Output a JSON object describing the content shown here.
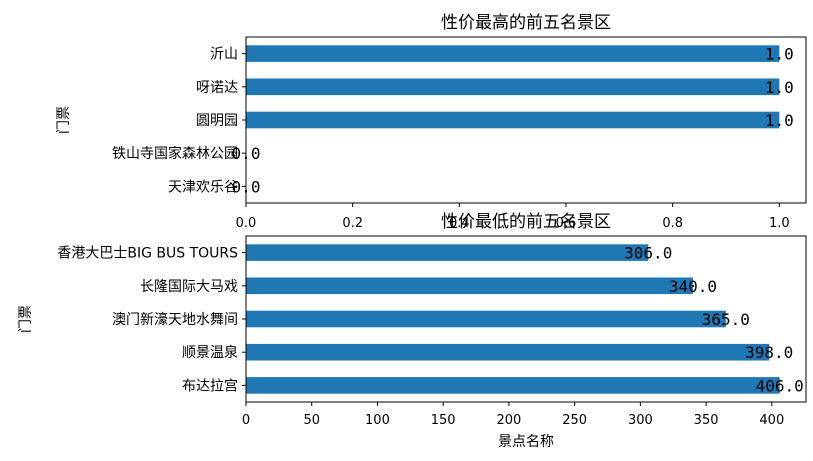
{
  "chart_data": [
    {
      "type": "bar",
      "orientation": "horizontal",
      "title": "性价最高的前五名景区",
      "ylabel": "门票",
      "xlabel": "",
      "categories": [
        "沂山",
        "呀诺达",
        "圆明园",
        "铁山寺国家森林公园",
        "天津欢乐谷"
      ],
      "values": [
        1.0,
        1.0,
        1.0,
        0.0,
        0.0
      ],
      "data_labels": [
        "1.0",
        "1.0",
        "1.0",
        "0.0",
        "0.0"
      ],
      "xlim": [
        0,
        1.05
      ],
      "xticks": [
        0.0,
        0.2,
        0.4,
        0.6,
        0.8,
        1.0
      ],
      "xtick_labels": [
        "0.0",
        "0.2",
        "0.4",
        "0.6",
        "0.8",
        "1.0"
      ],
      "bar_color": "#1f77b4",
      "grid": false,
      "legend": "none"
    },
    {
      "type": "bar",
      "orientation": "horizontal",
      "title": "性价最低的前五名景区",
      "ylabel": "门票",
      "xlabel": "景点名称",
      "categories": [
        "香港大巴士BIG BUS TOURS",
        "长隆国际大马戏",
        "澳门新濠天地水舞间",
        "顺景温泉",
        "布达拉宫"
      ],
      "values": [
        306.0,
        340.0,
        365.0,
        398.0,
        406.0
      ],
      "data_labels": [
        "306.0",
        "340.0",
        "365.0",
        "398.0",
        "406.0"
      ],
      "xlim": [
        0,
        426
      ],
      "xticks": [
        0,
        50,
        100,
        150,
        200,
        250,
        300,
        350,
        400
      ],
      "xtick_labels": [
        "0",
        "50",
        "100",
        "150",
        "200",
        "250",
        "300",
        "350",
        "400"
      ],
      "bar_color": "#1f77b4",
      "grid": false,
      "legend": "none"
    }
  ]
}
